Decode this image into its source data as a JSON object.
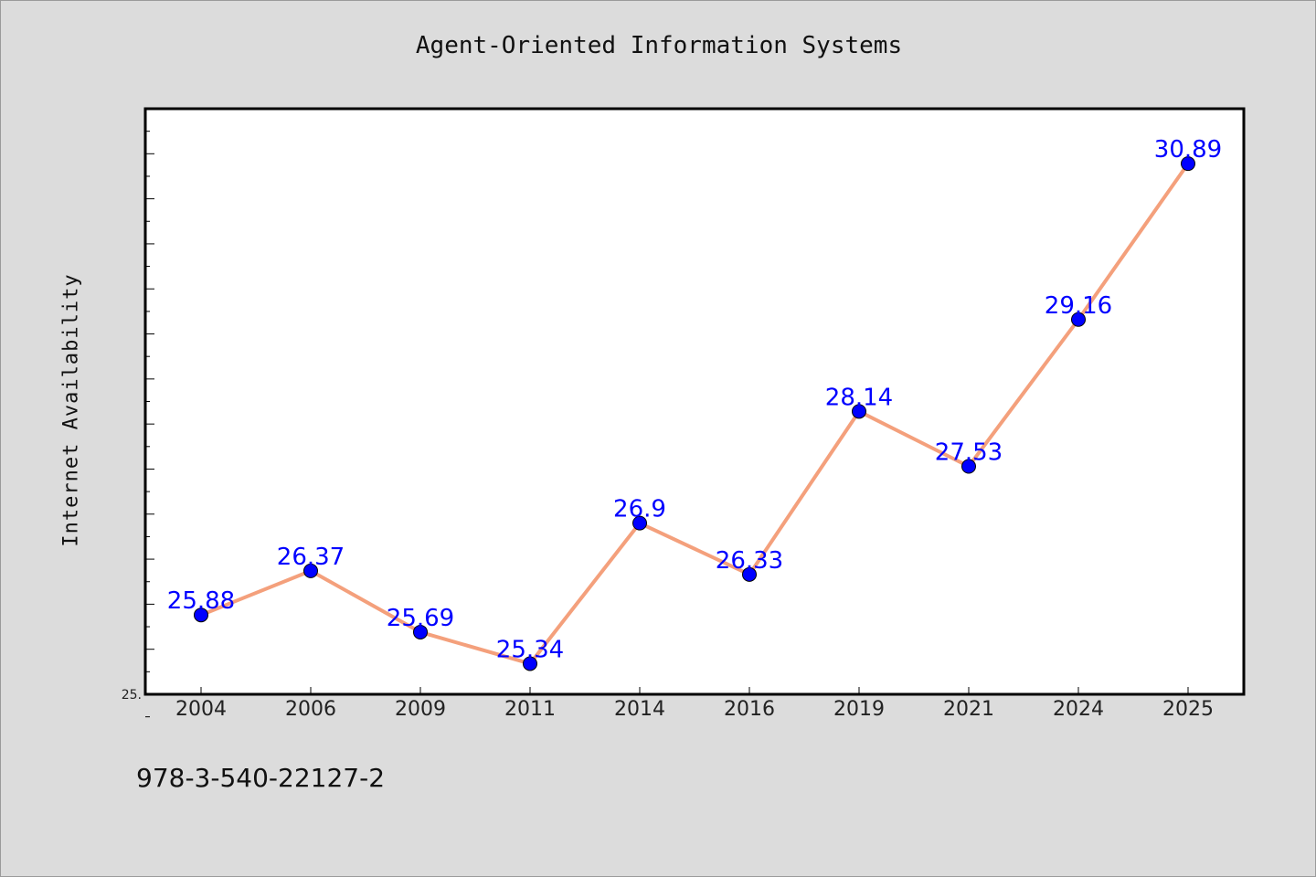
{
  "chart_data": {
    "type": "line",
    "title": "Agent-Oriented Information Systems",
    "xlabel": "",
    "ylabel": "Internet Availability",
    "categories": [
      "2004",
      "2006",
      "2009",
      "2011",
      "2014",
      "2016",
      "2019",
      "2021",
      "2024",
      "2025"
    ],
    "series": [
      {
        "values": [
          25.88,
          26.37,
          25.69,
          25.34,
          26.9,
          26.33,
          28.14,
          27.53,
          29.16,
          30.89
        ]
      }
    ],
    "data_labels": [
      "25.88",
      "26.37",
      "25.69",
      "25.34",
      "26.9",
      "26.33",
      "28.14",
      "27.53",
      "29.16",
      "30.89"
    ],
    "ylim": [
      25.0,
      31.5
    ],
    "y_tick_labels": [
      "25."
    ],
    "grid": false,
    "legend": "none",
    "colors": {
      "line": "#f4a07c",
      "marker": "#0000ff",
      "data_label": "#0000ff",
      "plot_background": "#ffffff",
      "page_background": "#dcdcdc"
    }
  },
  "footer": {
    "isbn": "978-3-540-22127-2"
  }
}
